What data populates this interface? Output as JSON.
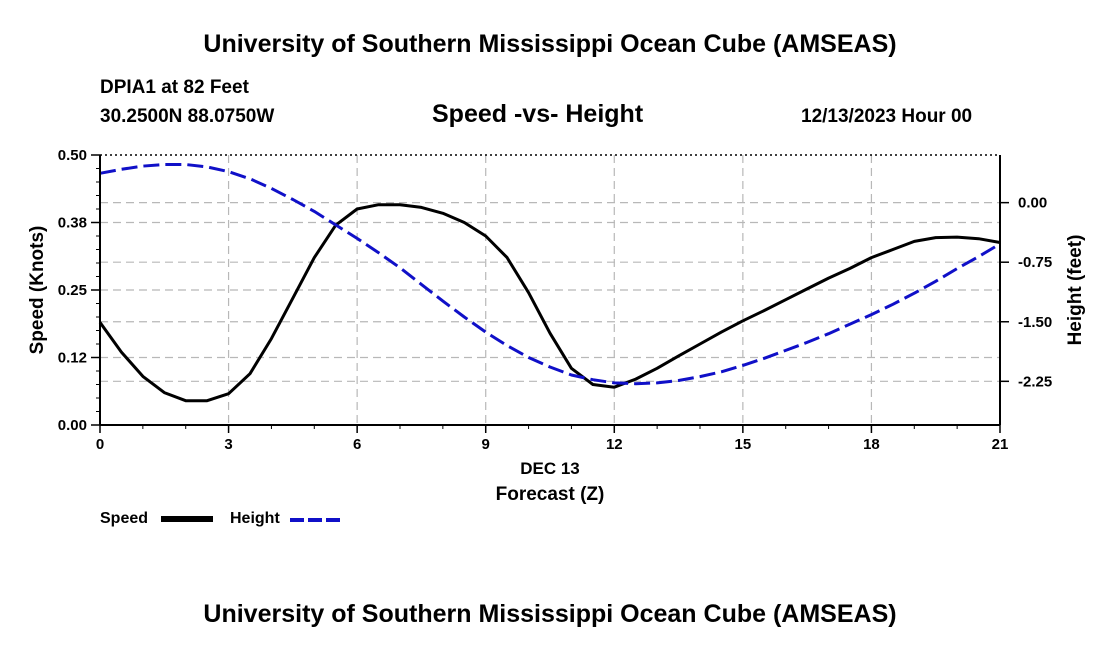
{
  "header": {
    "title": "University of Southern Mississippi Ocean Cube (AMSEAS)",
    "station": "DPIA1 at 82 Feet",
    "coords": "30.2500N  88.0750W",
    "datetime": "12/13/2023 Hour 00"
  },
  "footer": {
    "title": "University of Southern Mississippi Ocean Cube (AMSEAS)"
  },
  "legend": {
    "speed_label": "Speed",
    "height_label": "Height",
    "speed_color": "#000000",
    "height_color": "#1010c8"
  },
  "chart_data": {
    "type": "line",
    "title": "Speed -vs- Height",
    "xlabel": "Forecast (Z)",
    "xsublabel": "DEC 13",
    "ylabel_left": "Speed (Knots)",
    "ylabel_right": "Height (feet)",
    "xlim": [
      0,
      21
    ],
    "ylim_left": [
      0,
      0.5
    ],
    "ylim_right": [
      -2.8,
      0.6
    ],
    "x_ticks": [
      0,
      3,
      6,
      9,
      12,
      15,
      18,
      21
    ],
    "x_tick_labels": [
      "0",
      "3",
      "6",
      "9",
      "12",
      "15",
      "18",
      "21"
    ],
    "y_left_ticks": [
      0,
      0.125,
      0.25,
      0.375,
      0.5
    ],
    "y_left_tick_labels": [
      "0.00",
      "0.12",
      "0.25",
      "0.38",
      "0.50"
    ],
    "y_right_ticks": [
      0,
      -0.75,
      -1.5,
      -2.25
    ],
    "y_right_tick_labels": [
      "0.00",
      "-0.75",
      "-1.50",
      "-2.25"
    ],
    "grid": true,
    "series": [
      {
        "name": "Speed",
        "axis": "left",
        "style": "solid",
        "color": "#000000",
        "x": [
          0,
          0.5,
          1,
          1.5,
          2,
          2.5,
          3,
          3.5,
          4,
          4.5,
          5,
          5.5,
          6,
          6.5,
          7,
          7.5,
          8,
          8.5,
          9,
          9.5,
          10,
          10.5,
          11,
          11.5,
          12,
          12.5,
          13,
          13.5,
          14,
          14.5,
          15,
          15.5,
          16,
          16.5,
          17,
          17.5,
          18,
          18.5,
          19,
          19.5,
          20,
          20.5,
          21
        ],
        "values": [
          0.19,
          0.135,
          0.09,
          0.06,
          0.045,
          0.045,
          0.058,
          0.095,
          0.16,
          0.235,
          0.31,
          0.37,
          0.4,
          0.408,
          0.408,
          0.403,
          0.392,
          0.375,
          0.35,
          0.31,
          0.245,
          0.17,
          0.105,
          0.075,
          0.07,
          0.085,
          0.105,
          0.128,
          0.15,
          0.172,
          0.193,
          0.212,
          0.232,
          0.252,
          0.272,
          0.29,
          0.31,
          0.325,
          0.34,
          0.347,
          0.348,
          0.345,
          0.338
        ]
      },
      {
        "name": "Height",
        "axis": "right",
        "style": "dashed",
        "color": "#1010c8",
        "x": [
          0,
          0.5,
          1,
          1.5,
          2,
          2.5,
          3,
          3.5,
          4,
          4.5,
          5,
          5.5,
          6,
          6.5,
          7,
          7.5,
          8,
          8.5,
          9,
          9.5,
          10,
          10.5,
          11,
          11.5,
          12,
          12.5,
          13,
          13.5,
          14,
          14.5,
          15,
          15.5,
          16,
          16.5,
          17,
          17.5,
          18,
          18.5,
          19,
          19.5,
          20,
          20.5,
          21
        ],
        "values": [
          0.37,
          0.42,
          0.46,
          0.48,
          0.48,
          0.45,
          0.39,
          0.3,
          0.18,
          0.04,
          -0.11,
          -0.28,
          -0.45,
          -0.63,
          -0.82,
          -1.03,
          -1.24,
          -1.44,
          -1.63,
          -1.8,
          -1.95,
          -2.07,
          -2.17,
          -2.23,
          -2.27,
          -2.28,
          -2.27,
          -2.24,
          -2.19,
          -2.13,
          -2.05,
          -1.96,
          -1.86,
          -1.76,
          -1.65,
          -1.53,
          -1.41,
          -1.28,
          -1.14,
          -0.99,
          -0.83,
          -0.68,
          -0.52
        ]
      }
    ]
  }
}
